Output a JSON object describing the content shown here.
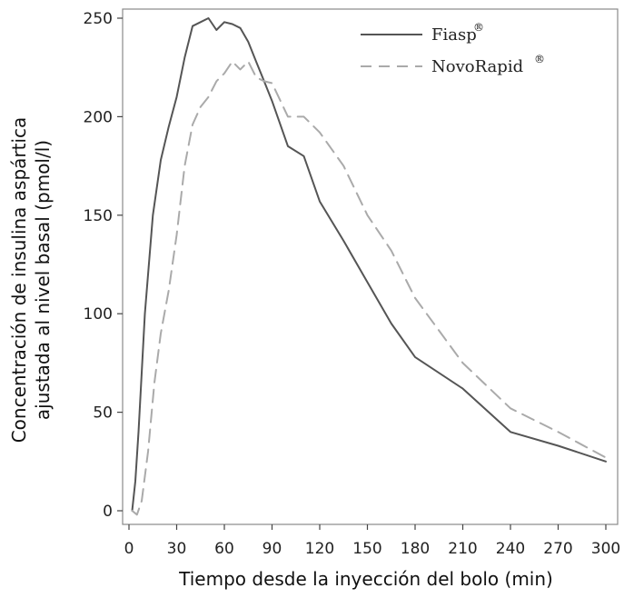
{
  "chart_data": {
    "type": "line",
    "title": "",
    "xlabel": "Tiempo desde la inyección del bolo (min)",
    "ylabel_lines": [
      "Concentración de insulina aspártica",
      "ajustada al nivel basal (pmol/l)"
    ],
    "xlim": [
      0,
      300
    ],
    "ylim": [
      0,
      250
    ],
    "x_ticks": [
      0,
      30,
      60,
      90,
      120,
      150,
      180,
      210,
      240,
      270,
      300
    ],
    "y_ticks": [
      0,
      50,
      100,
      150,
      200,
      250
    ],
    "grid": false,
    "legend_position": "top-right",
    "series": [
      {
        "name": "Fiasp",
        "superscript": "®",
        "style": "solid",
        "color": "#555555",
        "x": [
          2,
          4,
          6,
          10,
          15,
          20,
          25,
          30,
          35,
          40,
          45,
          50,
          55,
          60,
          65,
          70,
          75,
          80,
          85,
          90,
          100,
          110,
          120,
          135,
          150,
          165,
          180,
          210,
          240,
          270,
          300
        ],
        "y": [
          0,
          15,
          40,
          100,
          150,
          178,
          195,
          210,
          230,
          246,
          248,
          250,
          244,
          248,
          247,
          245,
          238,
          228,
          218,
          208,
          185,
          180,
          157,
          137,
          116,
          95,
          78,
          62,
          40,
          33,
          25
        ]
      },
      {
        "name": "NovoRapid",
        "superscript": "®",
        "style": "dashed",
        "color": "#aaaaaa",
        "x": [
          2,
          5,
          8,
          12,
          16,
          20,
          25,
          30,
          35,
          40,
          45,
          50,
          55,
          60,
          65,
          70,
          75,
          80,
          85,
          90,
          100,
          110,
          120,
          135,
          150,
          165,
          180,
          210,
          240,
          270,
          300
        ],
        "y": [
          0,
          -2,
          5,
          30,
          65,
          90,
          112,
          140,
          175,
          196,
          205,
          210,
          218,
          222,
          228,
          224,
          228,
          220,
          218,
          217,
          200,
          200,
          192,
          175,
          150,
          132,
          108,
          75,
          52,
          40,
          27
        ]
      }
    ]
  }
}
